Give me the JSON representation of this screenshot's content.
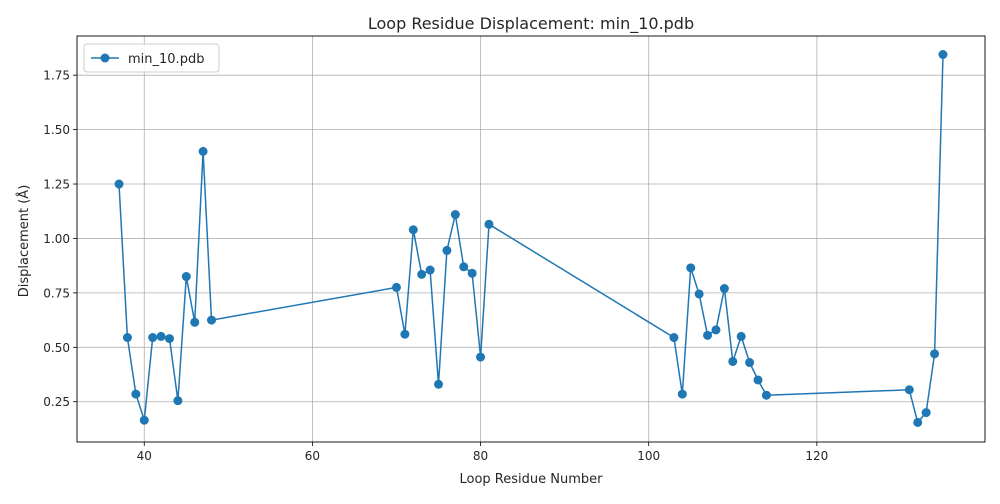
{
  "chart_data": {
    "type": "line",
    "title": "Loop Residue Displacement: min_10.pdb",
    "xlabel": "Loop Residue Number",
    "ylabel": "Displacement (Å)",
    "xlim": [
      32.0,
      140.0
    ],
    "ylim": [
      0.065,
      1.93
    ],
    "x_ticks": [
      40,
      60,
      80,
      100,
      120
    ],
    "y_ticks": [
      0.25,
      0.5,
      0.75,
      1.0,
      1.25,
      1.5,
      1.75
    ],
    "x_tick_labels": [
      "40",
      "60",
      "80",
      "100",
      "120"
    ],
    "y_tick_labels": [
      "0.25",
      "0.50",
      "0.75",
      "1.00",
      "1.25",
      "1.50",
      "1.75"
    ],
    "grid": true,
    "legend_position": "top-left",
    "series": [
      {
        "name": "min_10.pdb",
        "color": "#1f77b4",
        "marker": "circle",
        "x": [
          37,
          38,
          39,
          40,
          41,
          42,
          43,
          44,
          45,
          46,
          47,
          48,
          70,
          71,
          72,
          73,
          74,
          75,
          76,
          77,
          78,
          79,
          80,
          81,
          103,
          104,
          105,
          106,
          107,
          108,
          109,
          110,
          111,
          112,
          113,
          114,
          131,
          132,
          133,
          134,
          135
        ],
        "y": [
          1.25,
          0.545,
          0.285,
          0.165,
          0.545,
          0.55,
          0.54,
          0.255,
          0.825,
          0.615,
          1.4,
          0.625,
          0.775,
          0.56,
          1.04,
          0.835,
          0.855,
          0.33,
          0.945,
          1.11,
          0.87,
          0.84,
          0.455,
          1.065,
          0.545,
          0.285,
          0.865,
          0.745,
          0.555,
          0.58,
          0.77,
          0.435,
          0.55,
          0.43,
          0.35,
          0.28,
          0.305,
          0.155,
          0.2,
          0.47,
          1.845
        ]
      }
    ]
  }
}
